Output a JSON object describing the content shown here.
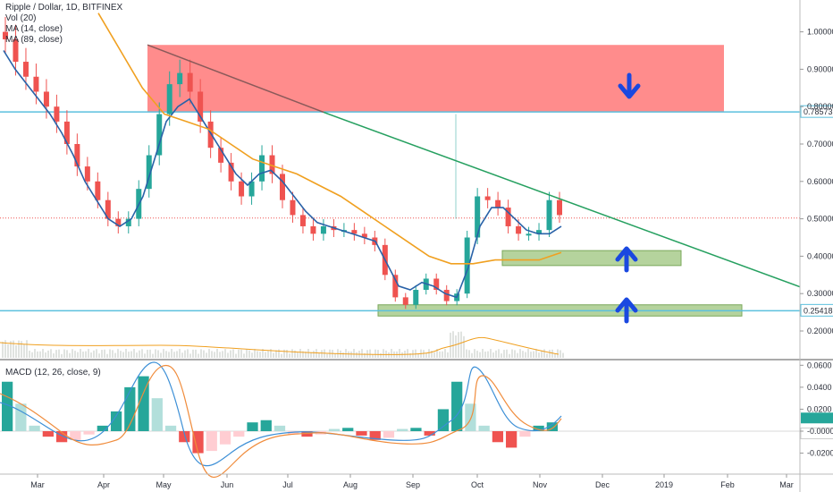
{
  "header": {
    "symbol": "Ripple / Dollar, 1D, BITFINEX",
    "volume_label": "Vol (20)",
    "ma_fast_label": "MA (14, close)",
    "ma_slow_label": "MA (89, close)",
    "macd_label": "MACD (12, 26, close, 9)"
  },
  "colors": {
    "up_candle": "#26a69a",
    "down_candle": "#ef5350",
    "ma_fast": "#2962a8",
    "ma_slow": "#f0a020",
    "trendline": "#26a060",
    "resistance_zone": "#ff7f7f",
    "support_zone": "#9cc47c",
    "horizontal_line": "#5bc0de",
    "arrow": "#1a48e0",
    "macd_line": "#3c8fd6",
    "signal_line": "#f08c3c"
  },
  "chart_data": [
    {
      "type": "candlestick",
      "title": "Ripple / Dollar, 1D, BITFINEX",
      "x_ticks": [
        "Mar",
        "Apr",
        "May",
        "Jun",
        "Jul",
        "Aug",
        "Sep",
        "Oct",
        "Nov",
        "Dec",
        "2019",
        "Feb",
        "Mar"
      ],
      "y_ticks": [
        "1.00000",
        "0.90000",
        "0.80000",
        "0.70000",
        "0.60000",
        "0.50000",
        "0.40000",
        "0.30000",
        "0.20000"
      ],
      "ylim": [
        0.13,
        1.08
      ],
      "price_markers": [
        "0.78573",
        "0.25418"
      ],
      "close_series": [
        0.98,
        0.92,
        0.88,
        0.84,
        0.8,
        0.76,
        0.7,
        0.64,
        0.6,
        0.55,
        0.5,
        0.48,
        0.5,
        0.58,
        0.67,
        0.78,
        0.86,
        0.89,
        0.84,
        0.76,
        0.69,
        0.65,
        0.6,
        0.56,
        0.6,
        0.67,
        0.62,
        0.55,
        0.51,
        0.48,
        0.46,
        0.48,
        0.47,
        0.47,
        0.46,
        0.45,
        0.43,
        0.35,
        0.29,
        0.27,
        0.31,
        0.34,
        0.31,
        0.28,
        0.3,
        0.45,
        0.56,
        0.55,
        0.53,
        0.48,
        0.46,
        0.46,
        0.47,
        0.55,
        0.51
      ],
      "ma14_series": [
        0.95,
        0.9,
        0.86,
        0.82,
        0.78,
        0.73,
        0.67,
        0.6,
        0.55,
        0.5,
        0.48,
        0.5,
        0.56,
        0.66,
        0.76,
        0.8,
        0.82,
        0.77,
        0.72,
        0.67,
        0.62,
        0.59,
        0.62,
        0.63,
        0.6,
        0.56,
        0.52,
        0.49,
        0.48,
        0.47,
        0.46,
        0.45,
        0.44,
        0.38,
        0.32,
        0.31,
        0.33,
        0.32,
        0.3,
        0.29,
        0.37,
        0.48,
        0.53,
        0.53,
        0.5,
        0.47,
        0.46,
        0.46,
        0.48
      ],
      "ma89_series": [
        1.05,
        0.95,
        0.85,
        0.78,
        0.76,
        0.74,
        0.7,
        0.66,
        0.64,
        0.62,
        0.59,
        0.56,
        0.52,
        0.48,
        0.44,
        0.4,
        0.38,
        0.38,
        0.39,
        0.39,
        0.39,
        0.41
      ],
      "trendline_points": [
        [
          "Apr 20",
          0.965
        ],
        [
          "Mar 2019",
          0.318
        ]
      ],
      "zones": [
        {
          "name": "resistance",
          "price_range": [
            0.785,
            0.965
          ]
        },
        {
          "name": "support",
          "price_range": [
            0.375,
            0.415
          ]
        },
        {
          "name": "support",
          "price_range": [
            0.24,
            0.27
          ]
        }
      ]
    },
    {
      "type": "bar",
      "title": "MACD (12, 26, close, 9)",
      "y_ticks": [
        "0.0600",
        "0.0400",
        "0.0200",
        "-0.0000",
        "-0.0200"
      ],
      "ylim": [
        -0.028,
        0.062
      ],
      "histogram": [
        0.045,
        0.025,
        0.005,
        -0.005,
        -0.01,
        -0.008,
        -0.003,
        0.005,
        0.018,
        0.04,
        0.05,
        0.03,
        0.005,
        -0.01,
        -0.02,
        -0.018,
        -0.012,
        -0.005,
        0.008,
        0.01,
        0.005,
        -0.003,
        -0.005,
        -0.003,
        0.002,
        0.003,
        -0.004,
        -0.008,
        -0.006,
        0.002,
        0.003,
        -0.004,
        0.02,
        0.045,
        0.025,
        0.005,
        -0.01,
        -0.015,
        -0.005,
        0.005,
        0.008
      ]
    }
  ]
}
